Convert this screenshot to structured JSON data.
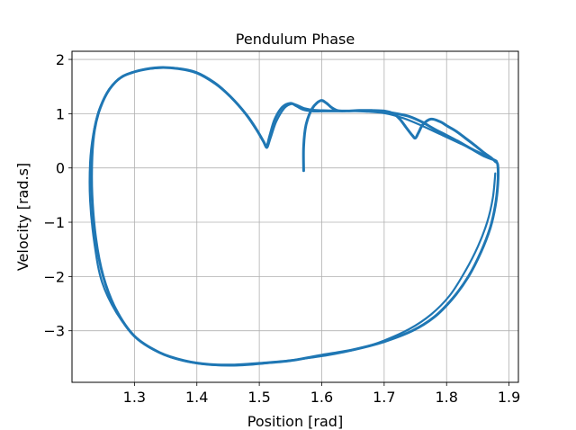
{
  "chart_data": {
    "type": "line",
    "title": "Pendulum Phase",
    "xlabel": "Position [rad]",
    "ylabel": "Velocity [rad.s]",
    "xlim": [
      1.2,
      1.915
    ],
    "ylim": [
      -3.95,
      2.15
    ],
    "xticks": [
      1.3,
      1.4,
      1.5,
      1.6,
      1.7,
      1.8,
      1.9
    ],
    "xtick_labels": [
      "1.3",
      "1.4",
      "1.5",
      "1.6",
      "1.7",
      "1.8",
      "1.9"
    ],
    "yticks": [
      -3,
      -2,
      -1,
      0,
      1,
      2
    ],
    "ytick_labels": [
      "−3",
      "−2",
      "−1",
      "0",
      "1",
      "2"
    ],
    "grid": true,
    "series_color": "#1f77b4",
    "series": [
      {
        "x": [
          1.571,
          1.571,
          1.575,
          1.585,
          1.598,
          1.607,
          1.615,
          1.625,
          1.64,
          1.66,
          1.68,
          1.7,
          1.715,
          1.725,
          1.735,
          1.745,
          1.75,
          1.755,
          1.762,
          1.775,
          1.79,
          1.8,
          1.815,
          1.83,
          1.845,
          1.86,
          1.872,
          1.878,
          1.882,
          1.882,
          1.878,
          1.87,
          1.855,
          1.835,
          1.81,
          1.78,
          1.745,
          1.7,
          1.65,
          1.6,
          1.55,
          1.5,
          1.46,
          1.42,
          1.38,
          1.34,
          1.3,
          1.27,
          1.25,
          1.238,
          1.232,
          1.232,
          1.236,
          1.245,
          1.26,
          1.28,
          1.31,
          1.34,
          1.37,
          1.4,
          1.43,
          1.455,
          1.478,
          1.495,
          1.507,
          1.512,
          1.517,
          1.525,
          1.537,
          1.55,
          1.56,
          1.57,
          1.585,
          1.6,
          1.62,
          1.64,
          1.66,
          1.68,
          1.7,
          1.72,
          1.74,
          1.76,
          1.78,
          1.8,
          1.82,
          1.84,
          1.86,
          1.876,
          1.88
        ],
        "y": [
          -0.05,
          0.4,
          0.8,
          1.1,
          1.24,
          1.2,
          1.12,
          1.06,
          1.05,
          1.06,
          1.06,
          1.05,
          1.0,
          0.9,
          0.75,
          0.6,
          0.55,
          0.65,
          0.8,
          0.9,
          0.85,
          0.78,
          0.68,
          0.55,
          0.42,
          0.28,
          0.18,
          0.12,
          0.05,
          -0.3,
          -0.7,
          -1.1,
          -1.55,
          -2.0,
          -2.4,
          -2.75,
          -3.0,
          -3.2,
          -3.35,
          -3.45,
          -3.55,
          -3.6,
          -3.63,
          -3.62,
          -3.55,
          -3.4,
          -3.1,
          -2.6,
          -2.0,
          -1.3,
          -0.5,
          0.2,
          0.7,
          1.1,
          1.45,
          1.68,
          1.8,
          1.85,
          1.83,
          1.75,
          1.55,
          1.3,
          1.0,
          0.72,
          0.48,
          0.4,
          0.6,
          0.9,
          1.12,
          1.19,
          1.14,
          1.08,
          1.05,
          1.05,
          1.05,
          1.05,
          1.06,
          1.06,
          1.04,
          1.0,
          0.95,
          0.85,
          0.72,
          0.6,
          0.48,
          0.35,
          0.22,
          0.15,
          0.12
        ]
      },
      {
        "x": [
          1.878,
          1.874,
          1.865,
          1.85,
          1.83,
          1.805,
          1.775,
          1.74,
          1.7,
          1.66,
          1.61,
          1.56,
          1.51,
          1.465,
          1.425,
          1.385,
          1.345,
          1.305,
          1.272,
          1.248,
          1.236,
          1.229,
          1.229,
          1.234,
          1.243,
          1.258,
          1.278,
          1.305,
          1.338,
          1.368,
          1.398,
          1.428,
          1.452,
          1.475,
          1.492,
          1.505,
          1.512,
          1.518,
          1.527,
          1.54,
          1.552,
          1.562,
          1.572,
          1.588,
          1.61,
          1.64,
          1.67,
          1.7,
          1.73,
          1.76,
          1.79,
          1.82,
          1.85,
          1.872
        ],
        "y": [
          -0.1,
          -0.55,
          -1.0,
          -1.45,
          -1.9,
          -2.35,
          -2.7,
          -2.97,
          -3.18,
          -3.33,
          -3.45,
          -3.53,
          -3.6,
          -3.64,
          -3.63,
          -3.57,
          -3.43,
          -3.15,
          -2.68,
          -2.1,
          -1.4,
          -0.6,
          0.1,
          0.62,
          1.05,
          1.42,
          1.66,
          1.79,
          1.84,
          1.84,
          1.77,
          1.58,
          1.34,
          1.04,
          0.76,
          0.52,
          0.37,
          0.55,
          0.85,
          1.1,
          1.18,
          1.15,
          1.1,
          1.07,
          1.06,
          1.05,
          1.04,
          1.01,
          0.92,
          0.78,
          0.62,
          0.46,
          0.3,
          0.16
        ]
      }
    ]
  }
}
